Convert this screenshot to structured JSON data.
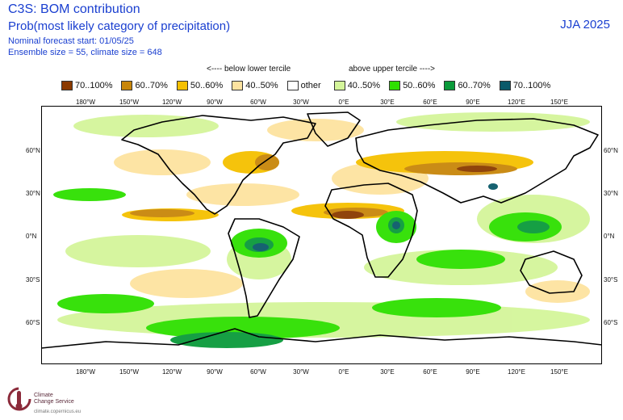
{
  "header": {
    "title": "C3S: BOM contribution",
    "subtitle": "Prob(most likely category of precipitation)",
    "forecast_start": "Nominal forecast start: 01/05/25",
    "ensemble": "Ensemble size = 55, climate size = 648",
    "season": "JJA 2025"
  },
  "legend": {
    "below_label": "<---- below lower tercile",
    "above_label": "above upper tercile ---->",
    "items": [
      {
        "label": "70..100%",
        "color": "#8b3a00"
      },
      {
        "label": "60..70%",
        "color": "#c8860a"
      },
      {
        "label": "50..60%",
        "color": "#f5c000"
      },
      {
        "label": "40..50%",
        "color": "#fde3a0"
      },
      {
        "label": "other",
        "color": "#ffffff"
      },
      {
        "label": "40..50%",
        "color": "#d4f59a"
      },
      {
        "label": "50..60%",
        "color": "#2ee000"
      },
      {
        "label": "60..70%",
        "color": "#0a9a3a"
      },
      {
        "label": "70..100%",
        "color": "#0a5a6a"
      }
    ]
  },
  "map": {
    "lon_labels": [
      "180°W",
      "150°W",
      "120°W",
      "90°W",
      "60°W",
      "30°W",
      "0°E",
      "30°E",
      "60°E",
      "90°E",
      "120°E",
      "150°E"
    ],
    "lat_labels": [
      "60°N",
      "30°N",
      "0°N",
      "30°S",
      "60°S"
    ]
  },
  "logo": {
    "line1": "Climate",
    "line2": "Change Service",
    "url": "climate.copernicus.eu"
  }
}
